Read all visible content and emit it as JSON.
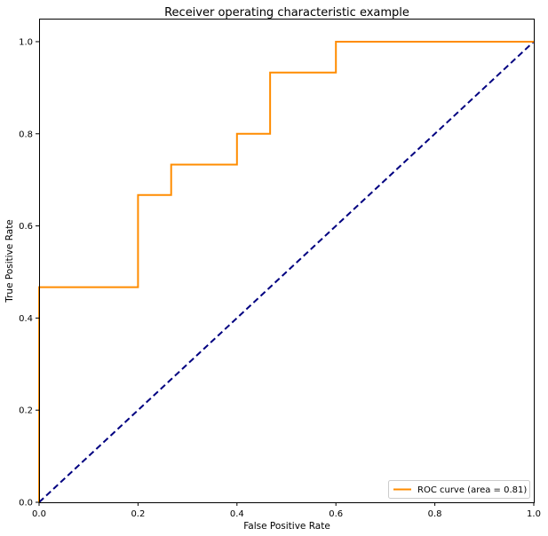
{
  "chart_data": {
    "type": "line",
    "title": "Receiver operating characteristic example",
    "xlabel": "False Positive Rate",
    "ylabel": "True Positive Rate",
    "xlim": [
      0.0,
      1.0
    ],
    "ylim": [
      0.0,
      1.05
    ],
    "xticks": [
      "0.0",
      "0.2",
      "0.4",
      "0.6",
      "0.8",
      "1.0"
    ],
    "yticks": [
      "0.0",
      "0.2",
      "0.4",
      "0.6",
      "0.8",
      "1.0"
    ],
    "grid": false,
    "legend_position": "lower-right",
    "series": [
      {
        "name": "ROC curve (area = 0.81)",
        "color": "#ff8c00",
        "style": "solid",
        "x": [
          0.0,
          0.0,
          0.2,
          0.2,
          0.267,
          0.267,
          0.4,
          0.4,
          0.467,
          0.467,
          0.6,
          0.6,
          1.0
        ],
        "y": [
          0.0,
          0.467,
          0.467,
          0.667,
          0.667,
          0.733,
          0.733,
          0.8,
          0.8,
          0.933,
          0.933,
          1.0,
          1.0
        ]
      },
      {
        "color": "#000080",
        "style": "dashed",
        "x": [
          0.0,
          1.0
        ],
        "y": [
          0.0,
          1.0
        ]
      }
    ]
  }
}
